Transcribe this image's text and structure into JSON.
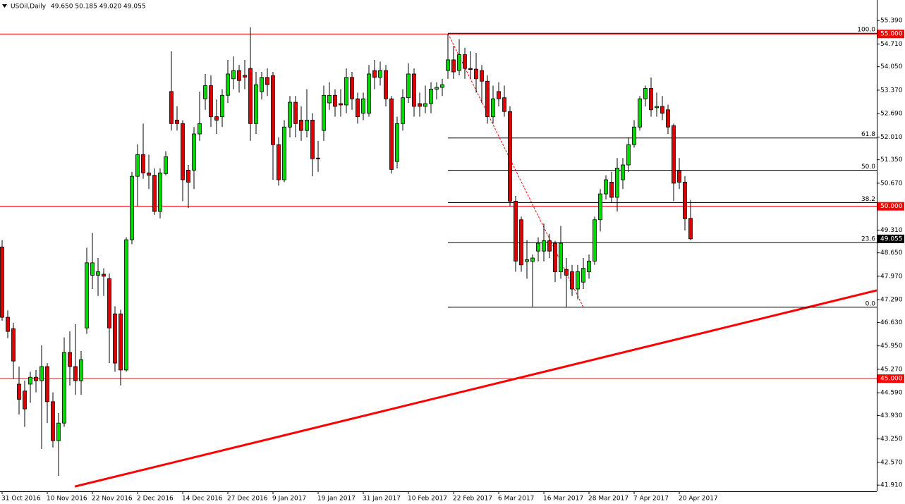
{
  "chart_data": {
    "type": "candlestick",
    "title": "USOil,Daily",
    "quote": "49.650 50.185 49.020 49.055",
    "categories": [
      "31 Oct 2016",
      null,
      null,
      null,
      null,
      null,
      null,
      null,
      "10 Nov 2016",
      null,
      null,
      null,
      null,
      null,
      null,
      null,
      "22 Nov 2016",
      null,
      null,
      null,
      null,
      null,
      null,
      null,
      "2 Dec 2016",
      null,
      null,
      null,
      null,
      null,
      null,
      null,
      "14 Dec 2016",
      null,
      null,
      null,
      null,
      null,
      null,
      null,
      "27 Dec 2016",
      null,
      null,
      null,
      null,
      null,
      null,
      null,
      "9 Jan 2017",
      null,
      null,
      null,
      null,
      null,
      null,
      null,
      "19 Jan 2017",
      null,
      null,
      null,
      null,
      null,
      null,
      null,
      "31 Jan 2017",
      null,
      null,
      null,
      null,
      null,
      null,
      null,
      "10 Feb 2017",
      null,
      null,
      null,
      null,
      null,
      null,
      null,
      "22 Feb 2017",
      null,
      null,
      null,
      null,
      null,
      null,
      null,
      "6 Mar 2017",
      null,
      null,
      null,
      null,
      null,
      null,
      null,
      "16 Mar 2017",
      null,
      null,
      null,
      null,
      null,
      null,
      null,
      "28 Mar 2017",
      null,
      null,
      null,
      null,
      null,
      null,
      null,
      "7 Apr 2017",
      null,
      null,
      null,
      null,
      null,
      null,
      null,
      "20 Apr 2017",
      null,
      null
    ],
    "open": [
      48.82,
      46.78,
      46.45,
      44.84,
      44.64,
      44.84,
      45.04,
      44.94,
      45.35,
      44.33,
      43.2,
      43.71,
      45.76,
      45.35,
      44.94,
      46.47,
      48.0,
      48.0,
      48.03,
      47.9,
      46.88,
      46.88,
      45.25,
      49.03,
      50.87,
      51.5,
      50.97,
      50.9,
      49.85,
      50.95,
      53.33,
      52.5,
      52.4,
      51.05,
      51.05,
      52.1,
      53.12,
      53.5,
      52.6,
      52.6,
      53.22,
      53.7,
      53.94,
      53.8,
      54.0,
      52.4,
      53.33,
      53.74,
      53.79,
      51.79,
      50.77,
      52.3,
      53.02,
      52.5,
      52.2,
      52.5,
      51.4,
      52.2,
      53.0,
      53.22,
      52.98,
      52.94,
      53.74,
      53.12,
      52.7,
      52.7,
      53.94,
      53.74,
      53.94,
      53.12,
      51.3,
      52.4,
      53.15,
      53.84,
      52.98,
      52.9,
      52.98,
      53.4,
      53.45,
      53.94,
      54.25,
      53.94,
      54.4,
      54.0,
      53.98,
      53.94,
      53.63,
      52.6,
      53.33,
      53.15,
      52.75,
      50.15,
      49.61,
      48.4,
      48.4,
      48.7,
      48.7,
      49.0,
      48.93,
      48.1,
      48.17,
      48.1,
      47.6,
      47.8,
      48.1,
      48.41,
      49.61,
      50.36,
      50.7,
      50.26,
      50.77,
      51.2,
      51.79,
      52.3,
      53.12,
      53.42,
      52.86,
      52.9,
      52.8,
      52.34,
      51.03,
      50.7,
      49.65
    ],
    "high": [
      49.02,
      46.98,
      46.62,
      45.35,
      44.94,
      45.2,
      45.25,
      45.97,
      45.45,
      44.6,
      44.0,
      46.2,
      46.37,
      46.58,
      45.8,
      48.8,
      49.23,
      48.5,
      48.2,
      48.05,
      47.1,
      47.0,
      49.1,
      51.0,
      51.8,
      52.4,
      51.5,
      51.1,
      51.1,
      51.6,
      54.5,
      52.9,
      52.5,
      51.2,
      52.3,
      53.33,
      53.84,
      53.8,
      53.1,
      53.4,
      54.25,
      54.35,
      54.1,
      54.25,
      55.2,
      53.9,
      53.9,
      54.0,
      53.9,
      52.0,
      52.5,
      53.2,
      53.2,
      52.9,
      53.4,
      52.7,
      51.9,
      53.5,
      53.6,
      53.4,
      53.4,
      54.0,
      53.9,
      53.3,
      53.3,
      54.1,
      54.25,
      54.2,
      54.1,
      53.2,
      52.6,
      53.4,
      54.15,
      54.0,
      53.3,
      53.5,
      53.6,
      53.6,
      53.7,
      55.0,
      54.65,
      54.85,
      54.6,
      54.5,
      54.45,
      54.1,
      53.8,
      53.5,
      53.6,
      53.5,
      52.9,
      50.3,
      49.7,
      49.02,
      48.6,
      49.1,
      49.5,
      49.2,
      49.0,
      49.43,
      48.5,
      48.3,
      48.3,
      48.5,
      48.6,
      49.7,
      50.5,
      50.9,
      51.0,
      51.4,
      51.4,
      52.0,
      52.5,
      53.2,
      53.5,
      53.74,
      53.3,
      53.2,
      52.95,
      52.4,
      51.4,
      50.87,
      50.185
    ],
    "low": [
      46.68,
      46.17,
      44.99,
      43.96,
      43.6,
      44.3,
      44.6,
      42.96,
      43.71,
      43.0,
      42.18,
      43.6,
      44.8,
      44.53,
      44.53,
      46.3,
      47.6,
      47.4,
      47.4,
      45.45,
      45.2,
      44.8,
      45.2,
      48.9,
      50.0,
      50.8,
      50.5,
      49.75,
      49.65,
      50.9,
      52.2,
      52.2,
      50.15,
      49.95,
      50.5,
      51.9,
      52.8,
      52.3,
      52.1,
      52.3,
      53.0,
      53.4,
      53.3,
      53.4,
      51.9,
      52.1,
      53.1,
      53.2,
      50.77,
      50.6,
      50.7,
      52.0,
      52.0,
      51.9,
      52.0,
      50.87,
      51.0,
      51.9,
      52.8,
      52.6,
      52.6,
      52.7,
      52.8,
      52.4,
      52.5,
      52.6,
      53.4,
      53.5,
      52.9,
      50.95,
      51.1,
      52.2,
      53.0,
      52.6,
      52.6,
      52.7,
      52.7,
      53.1,
      53.2,
      53.7,
      53.7,
      53.8,
      53.7,
      53.7,
      53.3,
      53.0,
      52.4,
      52.4,
      52.9,
      52.6,
      50.0,
      48.1,
      48.1,
      47.9,
      47.08,
      48.4,
      48.4,
      48.5,
      47.8,
      47.9,
      47.08,
      47.4,
      47.3,
      47.6,
      47.9,
      48.3,
      49.27,
      50.2,
      50.1,
      49.85,
      50.5,
      51.0,
      51.7,
      52.2,
      52.9,
      52.6,
      52.6,
      52.5,
      52.1,
      50.15,
      50.5,
      49.3,
      49.02
    ],
    "close": [
      46.78,
      46.37,
      45.51,
      44.4,
      44.12,
      45.04,
      44.94,
      45.35,
      44.33,
      43.2,
      43.71,
      45.76,
      45.35,
      44.94,
      45.55,
      48.36,
      48.36,
      48.1,
      47.97,
      46.47,
      45.45,
      45.25,
      49.03,
      50.87,
      51.5,
      50.97,
      50.9,
      49.85,
      50.97,
      51.44,
      52.4,
      52.4,
      50.77,
      50.7,
      52.1,
      52.4,
      53.5,
      52.6,
      52.5,
      53.22,
      53.84,
      53.94,
      53.65,
      53.75,
      52.4,
      53.53,
      53.74,
      53.53,
      51.79,
      50.77,
      52.3,
      53.02,
      52.4,
      52.2,
      52.5,
      51.38,
      51.38,
      53.22,
      53.22,
      52.9,
      52.94,
      53.74,
      53.12,
      52.6,
      53.12,
      53.84,
      53.74,
      53.94,
      53.12,
      51.07,
      52.4,
      53.15,
      53.84,
      52.9,
      52.9,
      52.98,
      53.4,
      53.45,
      53.53,
      54.25,
      53.9,
      54.4,
      54.0,
      53.97,
      53.7,
      53.63,
      52.6,
      53.12,
      53.12,
      52.75,
      50.15,
      48.41,
      48.3,
      48.45,
      48.5,
      48.93,
      49.0,
      48.7,
      48.1,
      48.93,
      48.0,
      47.6,
      48.1,
      48.2,
      48.41,
      49.61,
      50.36,
      50.77,
      50.26,
      51.11,
      51.2,
      51.79,
      52.3,
      53.12,
      53.42,
      52.8,
      52.9,
      52.7,
      52.3,
      50.67,
      50.7,
      49.64,
      49.055
    ],
    "up_color": "#00d800",
    "down_color": "#e00000",
    "ylim": [
      41.73,
      55.7
    ],
    "yticks": [
      {
        "value": 55.39,
        "label": "55.390"
      },
      {
        "value": 54.71,
        "label": "54.710"
      },
      {
        "value": 54.05,
        "label": "54.050"
      },
      {
        "value": 53.37,
        "label": "53.370"
      },
      {
        "value": 52.69,
        "label": "52.690"
      },
      {
        "value": 52.01,
        "label": "52.010"
      },
      {
        "value": 51.35,
        "label": "51.350"
      },
      {
        "value": 50.67,
        "label": "50.670"
      },
      {
        "value": 49.31,
        "label": "49.310"
      },
      {
        "value": 48.65,
        "label": "48.650"
      },
      {
        "value": 47.97,
        "label": "47.970"
      },
      {
        "value": 47.29,
        "label": "47.290"
      },
      {
        "value": 46.63,
        "label": "46.630"
      },
      {
        "value": 45.95,
        "label": "45.950"
      },
      {
        "value": 45.27,
        "label": "45.270"
      },
      {
        "value": 44.59,
        "label": "44.590"
      },
      {
        "value": 43.93,
        "label": "43.930"
      },
      {
        "value": 43.25,
        "label": "43.250"
      },
      {
        "value": 42.57,
        "label": "42.570"
      },
      {
        "value": 41.91,
        "label": "41.910"
      }
    ],
    "hlines": [
      {
        "value": 55,
        "label": "55.000"
      },
      {
        "value": 50,
        "label": "50.000"
      },
      {
        "value": 45,
        "label": "45.000"
      }
    ],
    "hline_color": "#ff0000",
    "price_label": {
      "value": 49.055,
      "label": "49.055"
    },
    "fibonacci": {
      "from_index": 79,
      "to_index": 103,
      "high": 55.02,
      "low": 47.07,
      "color": "#000000",
      "levels": [
        {
          "value": 100,
          "label": "100.0"
        },
        {
          "value": 61.8,
          "label": "61.8"
        },
        {
          "value": 50,
          "label": "50.0"
        },
        {
          "value": 38.2,
          "label": "38.2"
        },
        {
          "value": 23.6,
          "label": "23.6"
        },
        {
          "value": 0,
          "label": "0.0"
        }
      ]
    },
    "trendline": {
      "x": [
        12.9,
        155
      ],
      "y": [
        41.87,
        47.56
      ],
      "color": "#ff0000"
    }
  }
}
